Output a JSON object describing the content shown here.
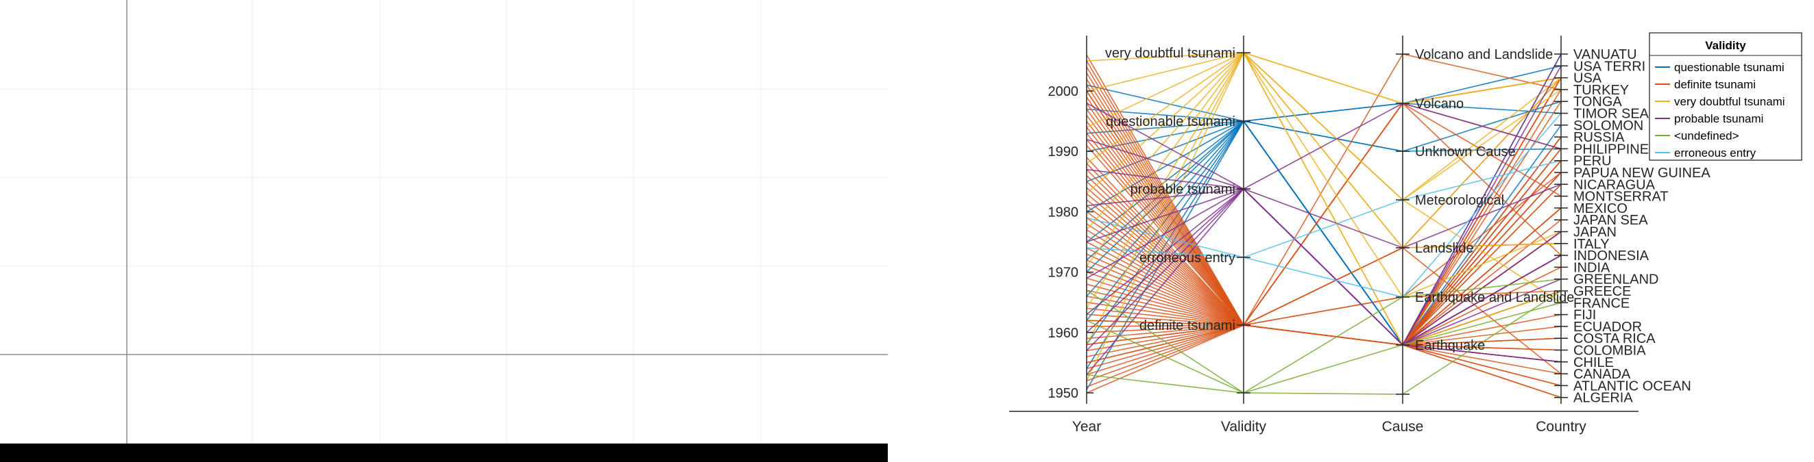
{
  "chart_data": {
    "type": "parallel-coordinates",
    "title": "",
    "axes": [
      {
        "name": "Year",
        "kind": "numeric",
        "ylim": [
          1948,
          2009
        ],
        "ticks": [
          1950,
          1960,
          1970,
          1980,
          1990,
          2000
        ]
      },
      {
        "name": "Validity",
        "kind": "categorical",
        "categories": [
          "very doubtful tsunami",
          "questionable tsunami",
          "probable tsunami",
          "erroneous entry",
          "definite tsunami",
          "<undefined>"
        ]
      },
      {
        "name": "Cause",
        "kind": "categorical",
        "categories": [
          "Volcano and Landslide",
          "Volcano",
          "Unknown Cause",
          "Meteorological",
          "Landslide",
          "Earthquake and Landslide",
          "Earthquake",
          "<undefined>"
        ]
      },
      {
        "name": "Country",
        "kind": "categorical",
        "categories": [
          "VANUATU",
          "USA TERRITORY",
          "USA",
          "TURKEY",
          "TONGA",
          "TIMOR SEA",
          "SOLOMON ISLANDS",
          "RUSSIA",
          "PHILIPPINES",
          "PERU",
          "PAPUA NEW GUINEA",
          "NICARAGUA",
          "MONTSERRAT",
          "MEXICO",
          "JAPAN SEA",
          "JAPAN",
          "ITALY",
          "INDONESIA",
          "INDIA",
          "GREENLAND",
          "GREECE",
          "FRANCE",
          "FIJI",
          "ECUADOR",
          "COSTA RICA",
          "COLOMBIA",
          "CHILE",
          "CANADA",
          "ATLANTIC OCEAN",
          "ALGERIA"
        ]
      }
    ],
    "axis_tick_labels": {
      "Validity": [
        "very doubtful tsunami",
        "questionable tsunami",
        "probable tsunami",
        "erroneous entry",
        "definite tsunami",
        ""
      ],
      "Cause": [
        "Volcano and Landslide",
        "Volcano",
        "Unknown Cause",
        "Meteorological",
        "Landslide",
        "Earthquake and Landslide",
        "Earthquake",
        ""
      ],
      "Country": [
        "VANUATU",
        "USA TERRI",
        "USA",
        "TURKEY",
        "TONGA",
        "TIMOR SEA",
        "SOLOMON",
        "RUSSIA",
        "PHILIPPINE",
        "PERU",
        "PAPUA NEW GUINEA",
        "NICARAGUA",
        "MONTSERRAT",
        "MEXICO",
        "JAPAN SEA",
        "JAPAN",
        "ITALY",
        "INDONESIA",
        "INDIA",
        "GREENLAND",
        "GREECE",
        "FRANCE",
        "FIJI",
        "ECUADOR",
        "COSTA RICA",
        "COLOMBIA",
        "CHILE",
        "CANADA",
        "ATLANTIC OCEAN",
        "ALGERIA"
      ]
    },
    "legend": {
      "title": "Validity",
      "placement": "top-right",
      "entries": [
        {
          "name": "questionable tsunami",
          "color": "#0072BD"
        },
        {
          "name": "definite tsunami",
          "color": "#D95319"
        },
        {
          "name": "very doubtful tsunami",
          "color": "#EDB120"
        },
        {
          "name": "probable tsunami",
          "color": "#7E2F8E"
        },
        {
          "name": "<undefined>",
          "color": "#77AC30"
        },
        {
          "name": "erroneous entry",
          "color": "#4DBEEE"
        }
      ]
    },
    "series": [
      {
        "validity": "questionable tsunami",
        "rows": [
          {
            "year": 1950.5,
            "cause": "Earthquake",
            "country": "INDONESIA"
          },
          {
            "year": 1954,
            "cause": "Earthquake",
            "country": "PHILIPPINES"
          },
          {
            "year": 1958,
            "cause": "Earthquake",
            "country": "JAPAN"
          },
          {
            "year": 1962,
            "cause": "Earthquake",
            "country": "SOLOMON ISLANDS"
          },
          {
            "year": 1966,
            "cause": "Unknown Cause",
            "country": "TONGA"
          },
          {
            "year": 1970,
            "cause": "Volcano",
            "country": "TIMOR SEA"
          },
          {
            "year": 1975,
            "cause": "Earthquake",
            "country": "RUSSIA"
          },
          {
            "year": 1980,
            "cause": "Earthquake",
            "country": "INDONESIA"
          },
          {
            "year": 1985,
            "cause": "Unknown Cause",
            "country": "PHILIPPINES"
          },
          {
            "year": 1993,
            "cause": "Earthquake",
            "country": "VANUATU"
          },
          {
            "year": 1997,
            "cause": "Earthquake",
            "country": "PAPUA NEW GUINEA"
          },
          {
            "year": 2001,
            "cause": "Volcano",
            "country": "USA TERRITORY"
          },
          {
            "year": 1990,
            "cause": "Earthquake",
            "country": "JAPAN"
          },
          {
            "year": 1972,
            "cause": "Earthquake",
            "country": "MEXICO"
          }
        ]
      },
      {
        "validity": "definite tsunami",
        "rows": [
          {
            "year": 1950,
            "cause": "Earthquake",
            "country": "ALGERIA"
          },
          {
            "year": 1951,
            "cause": "Earthquake",
            "country": "CHILE"
          },
          {
            "year": 1952,
            "cause": "Earthquake",
            "country": "RUSSIA"
          },
          {
            "year": 1953,
            "cause": "Earthquake",
            "country": "FIJI"
          },
          {
            "year": 1954,
            "cause": "Earthquake",
            "country": "GREECE"
          },
          {
            "year": 1955,
            "cause": "Earthquake",
            "country": "JAPAN"
          },
          {
            "year": 1956,
            "cause": "Earthquake and Landslide",
            "country": "GREECE"
          },
          {
            "year": 1957,
            "cause": "Earthquake",
            "country": "USA"
          },
          {
            "year": 1958,
            "cause": "Landslide",
            "country": "USA"
          },
          {
            "year": 1959,
            "cause": "Earthquake",
            "country": "ATLANTIC OCEAN"
          },
          {
            "year": 1960,
            "cause": "Earthquake",
            "country": "CHILE"
          },
          {
            "year": 1961,
            "cause": "Earthquake",
            "country": "JAPAN"
          },
          {
            "year": 1962,
            "cause": "Earthquake",
            "country": "COLOMBIA"
          },
          {
            "year": 1963,
            "cause": "Earthquake",
            "country": "INDONESIA"
          },
          {
            "year": 1964,
            "cause": "Earthquake",
            "country": "USA"
          },
          {
            "year": 1965,
            "cause": "Earthquake",
            "country": "ECUADOR"
          },
          {
            "year": 1966,
            "cause": "Volcano",
            "country": "PHILIPPINES"
          },
          {
            "year": 1967,
            "cause": "Earthquake",
            "country": "COSTA RICA"
          },
          {
            "year": 1968,
            "cause": "Earthquake",
            "country": "JAPAN"
          },
          {
            "year": 1969,
            "cause": "Earthquake",
            "country": "INDONESIA"
          },
          {
            "year": 1970,
            "cause": "Earthquake",
            "country": "PERU"
          },
          {
            "year": 1971,
            "cause": "Earthquake",
            "country": "PAPUA NEW GUINEA"
          },
          {
            "year": 1972,
            "cause": "Earthquake",
            "country": "NICARAGUA"
          },
          {
            "year": 1973,
            "cause": "Earthquake",
            "country": "MEXICO"
          },
          {
            "year": 1974,
            "cause": "Landslide",
            "country": "CANADA"
          },
          {
            "year": 1975,
            "cause": "Earthquake",
            "country": "USA"
          },
          {
            "year": 1976,
            "cause": "Earthquake",
            "country": "PHILIPPINES"
          },
          {
            "year": 1977,
            "cause": "Earthquake",
            "country": "INDONESIA"
          },
          {
            "year": 1978,
            "cause": "Earthquake",
            "country": "GREECE"
          },
          {
            "year": 1979,
            "cause": "Volcano",
            "country": "INDONESIA"
          },
          {
            "year": 1980,
            "cause": "Volcano",
            "country": "USA"
          },
          {
            "year": 1981,
            "cause": "Earthquake",
            "country": "TONGA"
          },
          {
            "year": 1982,
            "cause": "Earthquake",
            "country": "RUSSIA"
          },
          {
            "year": 1983,
            "cause": "Earthquake",
            "country": "JAPAN SEA"
          },
          {
            "year": 1984,
            "cause": "Earthquake",
            "country": "JAPAN"
          },
          {
            "year": 1985,
            "cause": "Earthquake",
            "country": "MEXICO"
          },
          {
            "year": 1986,
            "cause": "Earthquake",
            "country": "USA"
          },
          {
            "year": 1987,
            "cause": "Earthquake",
            "country": "CHILE"
          },
          {
            "year": 1988,
            "cause": "Earthquake",
            "country": "INDONESIA"
          },
          {
            "year": 1989,
            "cause": "Earthquake",
            "country": "PERU"
          },
          {
            "year": 1991,
            "cause": "Earthquake",
            "country": "COSTA RICA"
          },
          {
            "year": 1992,
            "cause": "Earthquake",
            "country": "NICARAGUA"
          },
          {
            "year": 1993,
            "cause": "Earthquake",
            "country": "JAPAN"
          },
          {
            "year": 1994,
            "cause": "Earthquake",
            "country": "PHILIPPINES"
          },
          {
            "year": 1995,
            "cause": "Earthquake",
            "country": "MEXICO"
          },
          {
            "year": 1996,
            "cause": "Earthquake",
            "country": "PERU"
          },
          {
            "year": 1997,
            "cause": "Volcano",
            "country": "MONTSERRAT"
          },
          {
            "year": 1998,
            "cause": "Earthquake and Landslide",
            "country": "PAPUA NEW GUINEA"
          },
          {
            "year": 1999,
            "cause": "Earthquake",
            "country": "TURKEY"
          },
          {
            "year": 2000,
            "cause": "Earthquake",
            "country": "PAPUA NEW GUINEA"
          },
          {
            "year": 2001,
            "cause": "Earthquake",
            "country": "PERU"
          },
          {
            "year": 2002,
            "cause": "Landslide",
            "country": "ITALY"
          },
          {
            "year": 2003,
            "cause": "Earthquake",
            "country": "ALGERIA"
          },
          {
            "year": 2004,
            "cause": "Earthquake",
            "country": "INDONESIA"
          },
          {
            "year": 2005,
            "cause": "Earthquake",
            "country": "INDIA"
          },
          {
            "year": 2006,
            "cause": "Volcano and Landslide",
            "country": "TURKEY"
          },
          {
            "year": 2000,
            "cause": "Volcano",
            "country": "USA"
          },
          {
            "year": 1962,
            "cause": "Earthquake",
            "country": "CANADA"
          },
          {
            "year": 1958,
            "cause": "Earthquake",
            "country": "ATLANTIC OCEAN"
          },
          {
            "year": 1955,
            "cause": "Earthquake",
            "country": "COLOMBIA"
          }
        ]
      },
      {
        "validity": "very doubtful tsunami",
        "rows": [
          {
            "year": 1952,
            "cause": "Meteorological",
            "country": "USA"
          },
          {
            "year": 1958,
            "cause": "Landslide",
            "country": "ITALY"
          },
          {
            "year": 1964,
            "cause": "Earthquake",
            "country": "GREECE"
          },
          {
            "year": 1971,
            "cause": "Meteorological",
            "country": "FRANCE"
          },
          {
            "year": 1977,
            "cause": "Volcano",
            "country": "USA"
          },
          {
            "year": 1983,
            "cause": "Earthquake and Landslide",
            "country": "JAPAN"
          },
          {
            "year": 1988,
            "cause": "Meteorological",
            "country": "TURKEY"
          },
          {
            "year": 1994,
            "cause": "Landslide",
            "country": "USA"
          },
          {
            "year": 2000,
            "cause": "Volcano",
            "country": "USA"
          },
          {
            "year": 2005,
            "cause": "Earthquake",
            "country": "INDONESIA"
          }
        ]
      },
      {
        "validity": "probable tsunami",
        "rows": [
          {
            "year": 1953,
            "cause": "Earthquake",
            "country": "CHILE"
          },
          {
            "year": 1957,
            "cause": "Earthquake",
            "country": "INDONESIA"
          },
          {
            "year": 1963,
            "cause": "Earthquake",
            "country": "GREENLAND"
          },
          {
            "year": 1969,
            "cause": "Volcano",
            "country": "PHILIPPINES"
          },
          {
            "year": 1975,
            "cause": "Earthquake",
            "country": "VANUATU"
          },
          {
            "year": 1981,
            "cause": "Landslide",
            "country": "NICARAGUA"
          },
          {
            "year": 1987,
            "cause": "Earthquake",
            "country": "INDONESIA"
          },
          {
            "year": 1992,
            "cause": "Earthquake",
            "country": "JAPAN"
          },
          {
            "year": 1998,
            "cause": "Earthquake",
            "country": "USA TERRITORY"
          },
          {
            "year": 1960,
            "cause": "Earthquake",
            "country": "CHILE"
          }
        ]
      },
      {
        "validity": "<undefined>",
        "rows": [
          {
            "year": 1953,
            "cause": "<undefined>",
            "country": "GREECE"
          },
          {
            "year": 1962,
            "cause": "Earthquake and Landslide",
            "country": "GREENLAND"
          },
          {
            "year": 1967,
            "cause": "Earthquake",
            "country": "FRANCE"
          }
        ]
      },
      {
        "validity": "erroneous entry",
        "rows": [
          {
            "year": 1974,
            "cause": "Meteorological",
            "country": "PERU"
          },
          {
            "year": 1979,
            "cause": "Earthquake and Landslide",
            "country": "TIMOR SEA"
          }
        ]
      }
    ]
  }
}
